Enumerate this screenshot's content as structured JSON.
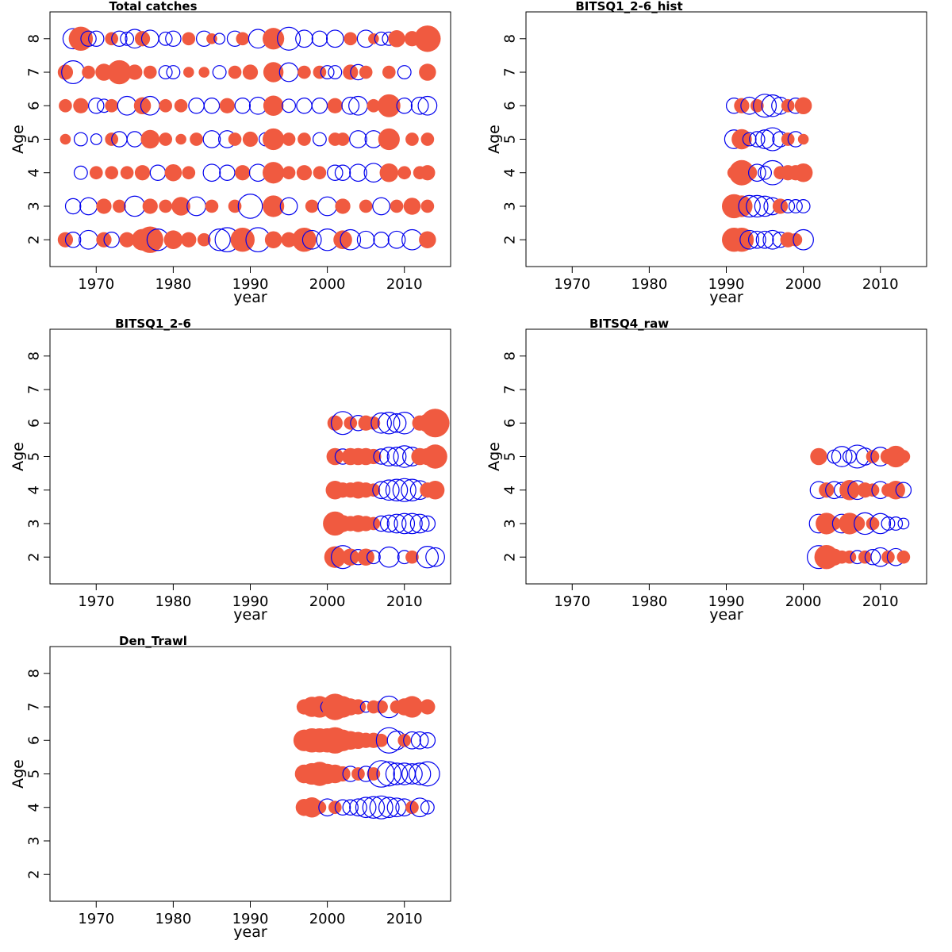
{
  "colors": {
    "positive": "#f05a40",
    "negative": "#0000ee",
    "frame": "#000000"
  },
  "chart_data": [
    {
      "type": "scatter",
      "variant": "bubble",
      "title": "Total catches",
      "xlabel": "year",
      "ylabel": "Age",
      "xlim": [
        1964,
        2016
      ],
      "ylim": [
        1.2,
        8.8
      ],
      "xticks": [
        1970,
        1980,
        1990,
        2000,
        2010
      ],
      "yticks": [
        2,
        3,
        4,
        5,
        6,
        7,
        8
      ],
      "series": [
        {
          "age": 8,
          "years": [
            1967,
            1968,
            1969,
            1970,
            1972,
            1973,
            1974,
            1975,
            1976,
            1977,
            1979,
            1980,
            1982,
            1984,
            1985,
            1986,
            1988,
            1989,
            1991,
            1993,
            1995,
            1997,
            1999,
            2001,
            2003,
            2005,
            2006,
            2007,
            2008,
            2009,
            2011,
            2013
          ],
          "residuals": [
            -0.7,
            1.0,
            -0.4,
            -0.4,
            0.3,
            -0.4,
            -0.3,
            -0.6,
            0.4,
            -0.5,
            -0.3,
            -0.4,
            0.3,
            -0.4,
            0.2,
            -0.2,
            -0.4,
            0.3,
            -0.6,
            0.8,
            -0.9,
            -0.5,
            -0.4,
            -0.5,
            0.3,
            -0.5,
            0.2,
            -0.3,
            -0.3,
            0.5,
            0.4,
            1.2
          ]
        },
        {
          "age": 7,
          "years": [
            1966,
            1967,
            1969,
            1971,
            1973,
            1975,
            1977,
            1979,
            1980,
            1982,
            1984,
            1986,
            1988,
            1990,
            1993,
            1995,
            1997,
            1999,
            2000,
            2001,
            2003,
            2004,
            2005,
            2008,
            2010,
            2013
          ],
          "residuals": [
            0.4,
            -0.9,
            0.3,
            0.5,
            1.0,
            0.4,
            0.3,
            -0.3,
            -0.3,
            0.2,
            0.2,
            -0.3,
            0.3,
            0.4,
            0.7,
            -0.6,
            0.3,
            0.3,
            -0.3,
            -0.3,
            0.4,
            -0.4,
            0.3,
            0.3,
            -0.3,
            0.5
          ]
        },
        {
          "age": 6,
          "years": [
            1966,
            1968,
            1970,
            1971,
            1972,
            1974,
            1976,
            1977,
            1979,
            1981,
            1983,
            1985,
            1987,
            1989,
            1991,
            1993,
            1995,
            1997,
            1999,
            2001,
            2003,
            2004,
            2006,
            2008,
            2010,
            2012,
            2013
          ],
          "residuals": [
            0.3,
            0.4,
            -0.4,
            -0.3,
            0.3,
            -0.6,
            0.5,
            -0.6,
            0.3,
            0.3,
            -0.4,
            -0.4,
            0.4,
            -0.4,
            -0.5,
            0.7,
            -0.3,
            -0.4,
            -0.4,
            0.4,
            -0.5,
            -0.6,
            0.3,
            0.9,
            -0.4,
            -0.5,
            -0.6
          ]
        },
        {
          "age": 5,
          "years": [
            1966,
            1968,
            1970,
            1972,
            1973,
            1975,
            1977,
            1979,
            1981,
            1983,
            1985,
            1987,
            1988,
            1990,
            1992,
            1993,
            1995,
            1997,
            1999,
            2001,
            2002,
            2004,
            2006,
            2008,
            2011,
            2013
          ],
          "residuals": [
            0.2,
            -0.3,
            -0.2,
            0.3,
            -0.4,
            -0.4,
            0.6,
            0.3,
            0.2,
            0.3,
            -0.5,
            -0.5,
            0.3,
            0.4,
            -0.3,
            0.8,
            0.3,
            0.3,
            -0.3,
            0.3,
            0.3,
            -0.5,
            -0.5,
            0.8,
            0.3,
            0.3
          ]
        },
        {
          "age": 4,
          "years": [
            1968,
            1970,
            1972,
            1974,
            1976,
            1978,
            1980,
            1982,
            1985,
            1987,
            1989,
            1991,
            1993,
            1995,
            1997,
            1999,
            2001,
            2002,
            2004,
            2006,
            2008,
            2010,
            2012,
            2013
          ],
          "residuals": [
            -0.3,
            0.3,
            0.3,
            0.3,
            0.4,
            -0.4,
            0.5,
            0.3,
            -0.5,
            -0.4,
            0.4,
            -0.5,
            0.8,
            0.3,
            0.4,
            0.3,
            -0.4,
            -0.4,
            -0.5,
            -0.6,
            0.6,
            0.3,
            0.3,
            0.4
          ]
        },
        {
          "age": 3,
          "years": [
            1967,
            1969,
            1971,
            1973,
            1975,
            1977,
            1979,
            1981,
            1983,
            1985,
            1988,
            1990,
            1993,
            1995,
            1998,
            2000,
            2002,
            2005,
            2007,
            2009,
            2011,
            2013
          ],
          "residuals": [
            -0.4,
            -0.5,
            0.4,
            0.3,
            -0.7,
            0.4,
            0.3,
            0.6,
            -0.6,
            0.3,
            0.3,
            -1.0,
            0.8,
            -0.5,
            0.3,
            -0.6,
            0.4,
            0.3,
            -0.5,
            0.3,
            0.5,
            0.3
          ]
        },
        {
          "age": 2,
          "years": [
            1966,
            1967,
            1969,
            1971,
            1972,
            1974,
            1976,
            1977,
            1978,
            1980,
            1982,
            1984,
            1986,
            1987,
            1989,
            1991,
            1993,
            1995,
            1997,
            1998,
            2000,
            2002,
            2003,
            2005,
            2007,
            2009,
            2011,
            2013
          ],
          "residuals": [
            0.4,
            -0.4,
            -0.6,
            0.4,
            -0.4,
            0.4,
            0.8,
            1.2,
            -0.8,
            0.6,
            0.4,
            0.3,
            -0.8,
            -1.0,
            1.0,
            -1.0,
            0.5,
            0.4,
            1.0,
            -0.6,
            -0.8,
            0.6,
            -0.7,
            -0.5,
            -0.4,
            -0.5,
            -0.7,
            0.5
          ]
        }
      ]
    },
    {
      "type": "scatter",
      "variant": "bubble",
      "title": "BITSQ1_2-6_hist",
      "xlabel": "year",
      "ylabel": "Age",
      "xlim": [
        1964,
        2016
      ],
      "ylim": [
        1.2,
        8.8
      ],
      "xticks": [
        1970,
        1980,
        1990,
        2000,
        2010
      ],
      "yticks": [
        2,
        3,
        4,
        5,
        6,
        7,
        8
      ],
      "series": [
        {
          "age": 6,
          "years": [
            1991,
            1992,
            1993,
            1994,
            1995,
            1996,
            1997,
            1998,
            1999,
            2000
          ],
          "residuals": [
            -0.4,
            0.4,
            -0.5,
            0.3,
            -0.9,
            -0.8,
            -0.5,
            0.3,
            -0.4,
            0.5
          ]
        },
        {
          "age": 5,
          "years": [
            1991,
            1992,
            1993,
            1994,
            1995,
            1996,
            1997,
            1998,
            1999,
            2000
          ],
          "residuals": [
            -0.6,
            0.7,
            -0.3,
            -0.4,
            -0.6,
            -0.9,
            -0.4,
            0.3,
            -0.4,
            0.2
          ]
        },
        {
          "age": 4,
          "years": [
            1991,
            1992,
            1993,
            1994,
            1995,
            1996,
            1997,
            1998,
            1999,
            2000
          ],
          "residuals": [
            0.3,
            1.1,
            0.4,
            -0.5,
            -0.3,
            -1.0,
            0.3,
            0.4,
            0.4,
            0.6
          ]
        },
        {
          "age": 3,
          "years": [
            1991,
            1992,
            1993,
            1994,
            1995,
            1996,
            1997,
            1998,
            1999,
            2000
          ],
          "residuals": [
            1.0,
            0.8,
            -0.8,
            -0.8,
            -0.7,
            -0.5,
            0.4,
            -0.3,
            -0.3,
            -0.3
          ]
        },
        {
          "age": 2,
          "years": [
            1991,
            1992,
            1993,
            1994,
            1995,
            1996,
            1997,
            1998,
            1999,
            2000
          ],
          "residuals": [
            1.0,
            1.0,
            -0.6,
            -0.5,
            -0.5,
            -0.6,
            -0.4,
            0.4,
            0.3,
            -0.7
          ]
        }
      ]
    },
    {
      "type": "scatter",
      "variant": "bubble",
      "title": "BITSQ1_2-6",
      "xlabel": "year",
      "ylabel": "Age",
      "xlim": [
        1964,
        2016
      ],
      "ylim": [
        1.2,
        8.8
      ],
      "xticks": [
        1970,
        1980,
        1990,
        2000,
        2010
      ],
      "yticks": [
        2,
        3,
        4,
        5,
        6,
        7,
        8
      ],
      "series": [
        {
          "age": 6,
          "years": [
            2001,
            2002,
            2003,
            2004,
            2005,
            2006,
            2007,
            2008,
            2009,
            2010,
            2012,
            2013,
            2014
          ],
          "residuals": [
            0.4,
            -0.9,
            0.3,
            -0.4,
            0.4,
            0.3,
            -0.7,
            -0.8,
            -0.6,
            -0.8,
            0.4,
            0.6,
            1.4
          ]
        },
        {
          "age": 5,
          "years": [
            2001,
            2002,
            2003,
            2004,
            2005,
            2006,
            2007,
            2008,
            2009,
            2010,
            2011,
            2012,
            2013,
            2014
          ],
          "residuals": [
            0.5,
            -0.4,
            0.5,
            0.5,
            0.5,
            0.4,
            -0.4,
            -0.6,
            -0.6,
            -0.8,
            -0.6,
            0.5,
            0.5,
            1.0
          ]
        },
        {
          "age": 4,
          "years": [
            2001,
            2002,
            2003,
            2004,
            2005,
            2006,
            2007,
            2008,
            2009,
            2010,
            2011,
            2012,
            2013,
            2014
          ],
          "residuals": [
            0.6,
            0.4,
            0.4,
            0.5,
            0.4,
            0.3,
            -0.5,
            -0.7,
            -0.8,
            -0.9,
            -0.8,
            -0.6,
            0.4,
            0.6
          ]
        },
        {
          "age": 3,
          "years": [
            2001,
            2002,
            2003,
            2004,
            2005,
            2006,
            2007,
            2008,
            2009,
            2010,
            2011,
            2012,
            2013
          ],
          "residuals": [
            1.0,
            0.5,
            0.4,
            0.5,
            0.4,
            0.3,
            -0.4,
            -0.5,
            -0.6,
            -0.7,
            -0.7,
            -0.6,
            -0.4
          ]
        },
        {
          "age": 2,
          "years": [
            2001,
            2002,
            2003,
            2004,
            2005,
            2006,
            2008,
            2010,
            2011,
            2013,
            2014
          ],
          "residuals": [
            0.8,
            -0.9,
            0.5,
            -0.4,
            0.5,
            -0.3,
            -0.7,
            -0.3,
            0.3,
            -0.8,
            -0.6
          ]
        }
      ]
    },
    {
      "type": "scatter",
      "variant": "bubble",
      "title": "BITSQ4_raw",
      "xlabel": "year",
      "ylabel": "Age",
      "xlim": [
        1964,
        2016
      ],
      "ylim": [
        1.2,
        8.8
      ],
      "xticks": [
        1970,
        1980,
        1990,
        2000,
        2010
      ],
      "yticks": [
        2,
        3,
        4,
        5,
        6,
        7,
        8
      ],
      "series": [
        {
          "age": 5,
          "years": [
            2002,
            2004,
            2005,
            2006,
            2007,
            2008,
            2009,
            2010,
            2011,
            2012,
            2013
          ],
          "residuals": [
            0.5,
            -0.3,
            -0.7,
            -0.3,
            -0.9,
            -0.5,
            0.3,
            -0.6,
            0.4,
            0.8,
            0.3
          ]
        },
        {
          "age": 4,
          "years": [
            2002,
            2003,
            2004,
            2005,
            2006,
            2007,
            2008,
            2009,
            2010,
            2011,
            2012,
            2013
          ],
          "residuals": [
            -0.5,
            0.4,
            -0.5,
            -0.4,
            0.7,
            -0.6,
            0.4,
            0.3,
            -0.5,
            0.3,
            0.6,
            -0.4
          ]
        },
        {
          "age": 3,
          "years": [
            2002,
            2003,
            2004,
            2005,
            2006,
            2007,
            2008,
            2009,
            2010,
            2011,
            2012,
            2013
          ],
          "residuals": [
            -0.6,
            0.8,
            0.3,
            -0.6,
            0.8,
            0.4,
            -0.8,
            0.3,
            -0.7,
            -0.3,
            -0.3,
            -0.2
          ]
        },
        {
          "age": 2,
          "years": [
            2002,
            2003,
            2004,
            2005,
            2006,
            2007,
            2008,
            2009,
            2010,
            2011,
            2012,
            2013
          ],
          "residuals": [
            -0.9,
            1.0,
            0.5,
            0.3,
            0.3,
            -0.3,
            0.3,
            -0.4,
            -0.6,
            0.3,
            -0.5,
            0.3
          ]
        }
      ]
    },
    {
      "type": "scatter",
      "variant": "bubble",
      "title": "Den_Trawl",
      "xlabel": "year",
      "ylabel": "Age",
      "xlim": [
        1964,
        2016
      ],
      "ylim": [
        1.2,
        8.8
      ],
      "xticks": [
        1970,
        1980,
        1990,
        2000,
        2010
      ],
      "yticks": [
        2,
        3,
        4,
        5,
        6,
        7,
        8
      ],
      "series": [
        {
          "age": 7,
          "years": [
            1997,
            1998,
            1999,
            2000,
            2001,
            2002,
            2003,
            2004,
            2005,
            2006,
            2007,
            2008,
            2009,
            2010,
            2011,
            2013
          ],
          "residuals": [
            0.4,
            0.7,
            0.8,
            -0.3,
            1.2,
            0.8,
            0.5,
            0.4,
            -0.2,
            0.3,
            0.3,
            -0.8,
            0.3,
            0.5,
            0.8,
            0.4
          ]
        },
        {
          "age": 6,
          "years": [
            1997,
            1998,
            1999,
            2000,
            2001,
            2002,
            2003,
            2004,
            2005,
            2006,
            2007,
            2008,
            2009,
            2010,
            2011,
            2012,
            2013
          ],
          "residuals": [
            0.8,
            1.0,
            1.0,
            1.0,
            1.2,
            0.8,
            0.6,
            0.5,
            0.4,
            0.4,
            0.3,
            -1.1,
            -0.6,
            0.3,
            -0.5,
            -0.5,
            -0.4
          ]
        },
        {
          "age": 5,
          "years": [
            1997,
            1998,
            1999,
            2000,
            2001,
            2002,
            2003,
            2004,
            2005,
            2006,
            2007,
            2008,
            2009,
            2010,
            2011,
            2012,
            2013
          ],
          "residuals": [
            0.6,
            0.8,
            1.0,
            0.7,
            0.6,
            0.4,
            -0.4,
            0.3,
            -0.4,
            0.3,
            -1.2,
            -1.0,
            -0.8,
            -0.8,
            -0.7,
            -0.8,
            -1.0
          ]
        },
        {
          "age": 4,
          "years": [
            1997,
            1998,
            1999,
            2000,
            2001,
            2002,
            2003,
            2004,
            2005,
            2006,
            2007,
            2008,
            2009,
            2010,
            2011,
            2012,
            2013
          ],
          "residuals": [
            0.5,
            0.7,
            0.3,
            -0.5,
            0.3,
            -0.4,
            -0.4,
            -0.5,
            -0.7,
            -0.8,
            -0.9,
            -0.7,
            -0.6,
            -0.5,
            0.3,
            -0.6,
            -0.3
          ]
        }
      ]
    }
  ]
}
